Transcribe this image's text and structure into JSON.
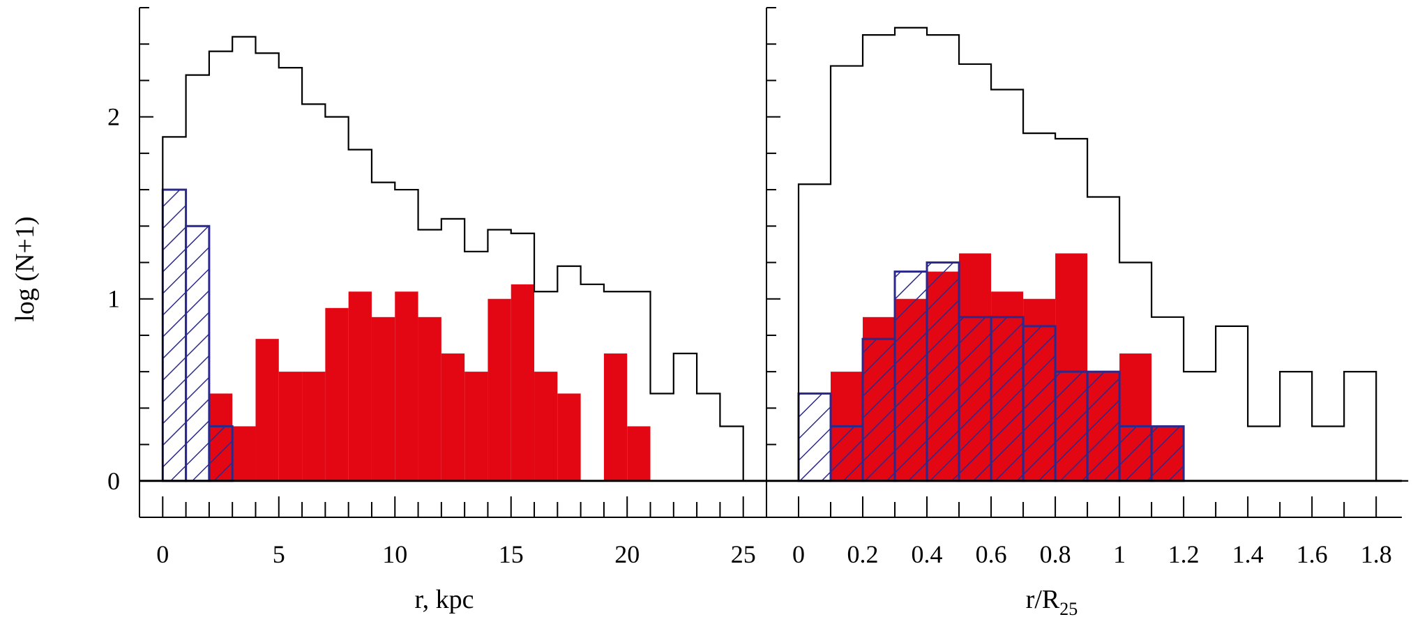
{
  "chart_data": [
    {
      "type": "bar",
      "style": "step-histogram",
      "xlabel": "r, kpc",
      "ylabel": "log (N+1)",
      "xlim": [
        -1,
        26
      ],
      "ylim": [
        -0.2,
        2.6
      ],
      "xticks": [
        0,
        5,
        10,
        15,
        20,
        25
      ],
      "xtick_labels": [
        "0",
        "5",
        "10",
        "15",
        "20",
        "25"
      ],
      "xminor_step": 1,
      "yticks": [
        0,
        1,
        2
      ],
      "ytick_labels": [
        "0",
        "1",
        "2"
      ],
      "yminor_step": 0.2,
      "bin_width": 1,
      "bin_edges_start": 0,
      "series": [
        {
          "kind": "outline",
          "color": "#000000",
          "values": [
            1.89,
            2.23,
            2.36,
            2.44,
            2.35,
            2.27,
            2.07,
            2.0,
            1.82,
            1.64,
            1.6,
            1.38,
            1.44,
            1.26,
            1.38,
            1.36,
            1.04,
            1.18,
            1.08,
            1.04,
            1.04,
            0.48,
            0.7,
            0.48,
            0.3,
            0.0
          ]
        },
        {
          "kind": "filled",
          "color": "#e30613",
          "values": [
            0,
            0,
            0.48,
            0.3,
            0.78,
            0.6,
            0.6,
            0.95,
            1.04,
            0.9,
            1.04,
            0.9,
            0.7,
            0.6,
            1.0,
            1.08,
            0.6,
            0.48,
            0,
            0.7,
            0.3,
            0,
            0,
            0,
            0,
            0
          ]
        },
        {
          "kind": "hatched",
          "color": "#2b2a8c",
          "values": [
            1.6,
            1.4,
            0.3,
            0,
            0,
            0,
            0,
            0,
            0,
            0,
            0,
            0,
            0,
            0,
            0,
            0,
            0,
            0,
            0,
            0,
            0,
            0,
            0,
            0,
            0,
            0
          ]
        }
      ]
    },
    {
      "type": "bar",
      "style": "step-histogram",
      "xlabel": "r/R",
      "xlabel_subscript": "25",
      "ylabel": "",
      "xlim": [
        -0.1,
        1.88
      ],
      "ylim": [
        -0.2,
        2.6
      ],
      "xticks": [
        0,
        0.2,
        0.4,
        0.6,
        0.8,
        1.0,
        1.2,
        1.4,
        1.6,
        1.8
      ],
      "xtick_labels": [
        "0",
        "0.2",
        "0.4",
        "0.6",
        "0.8",
        "1",
        "1.2",
        "1.4",
        "1.6",
        "1.8"
      ],
      "xminor_step": 0.1,
      "yticks": [
        0,
        1,
        2
      ],
      "ytick_labels": [],
      "yminor_step": 0.2,
      "bin_width": 0.1,
      "bin_edges_start": 0,
      "series": [
        {
          "kind": "outline",
          "color": "#000000",
          "values": [
            1.63,
            2.28,
            2.45,
            2.49,
            2.45,
            2.29,
            2.15,
            1.91,
            1.88,
            1.56,
            1.2,
            0.9,
            0.6,
            0.85,
            0.3,
            0.6,
            0.3,
            0.6,
            0.0
          ]
        },
        {
          "kind": "filled",
          "color": "#e30613",
          "values": [
            0,
            0.6,
            0.9,
            1.0,
            1.15,
            1.25,
            1.04,
            1.0,
            1.25,
            0.6,
            0.7,
            0.3,
            0,
            0,
            0,
            0,
            0,
            0,
            0
          ]
        },
        {
          "kind": "hatched",
          "color": "#2b2a8c",
          "values": [
            0.48,
            0.3,
            0.78,
            1.15,
            1.2,
            0.9,
            0.9,
            0.85,
            0.6,
            0.6,
            0.3,
            0.3,
            0,
            0,
            0,
            0,
            0,
            0,
            0
          ]
        }
      ]
    }
  ]
}
